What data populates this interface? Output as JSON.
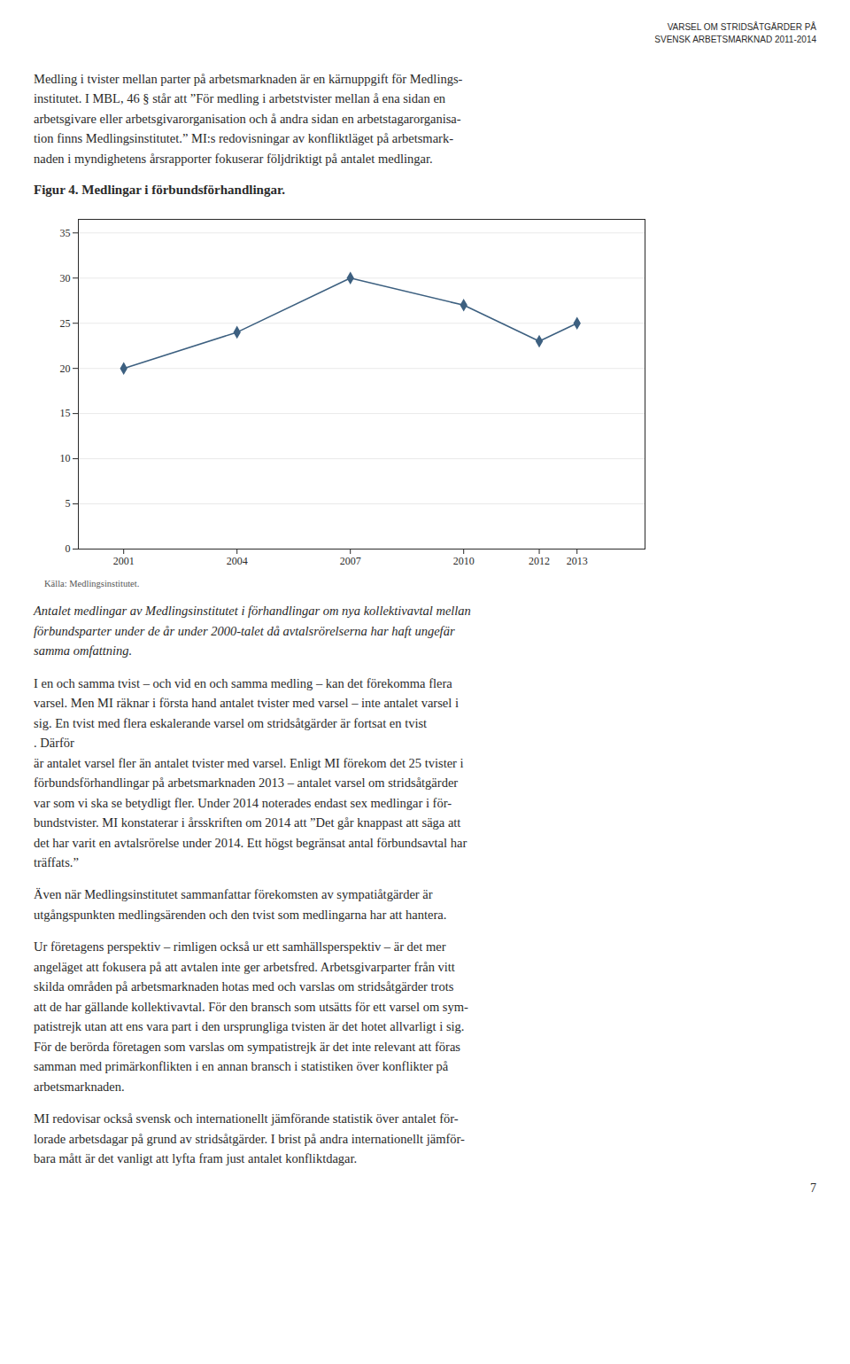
{
  "chart_data": {
    "type": "line",
    "title": "Figur 4. Medlingar i förbundsförhandlingar.",
    "x": [
      2001,
      2004,
      2007,
      2010,
      2012,
      2013
    ],
    "values": [
      20,
      24,
      30,
      27,
      23,
      25
    ],
    "color": "#3d6080",
    "marker": "diamond",
    "xlim": [
      1999.8,
      2014.8
    ],
    "xticks": [
      2001,
      2004,
      2007,
      2010,
      2012,
      2013
    ],
    "ylim": [
      0,
      36.5
    ],
    "yticks": [
      0,
      5,
      10,
      15,
      20,
      25,
      30,
      35
    ],
    "grid": true,
    "annotations": [
      "VARSEL OM STRIDSÅTGÄRDER PÅ",
      "SVENSK ARBETSMARKNAD 2011-2014",
      "Medling i tvister mellan parter på arbetsmarknaden är en kärnuppgift för Medlings-\ninstitutet. I MBL, 46 § står att ”För medling i arbetstvister mellan å ena sidan en\narbetsgivare eller arbetsgivarorganisation och å andra sidan en arbetstagarorganisa-\ntion finns Medlingsinstitutet.” MI:s redovisningar av konfliktläget på arbetsmark-\nnaden i myndighetens årsrapporter fokuserar följdriktigt på antalet medlingar.",
      "Antalet medlingar av Medlingsinstitutet i förhandlingar om nya kollektivavtal mellan\nförbundsparter under de år under 2000-talet då avtalsrörelserna har haft ungefär\nsamma omfattning.",
      "I en och samma tvist – och vid en och samma medling – kan det förekomma flera\nvarsel. Men MI räknar i första hand antalet tvister med varsel – inte antalet varsel i\nsig. En tvist med flera eskalerande varsel om stridsåtgärder är fortsat en tvist\n. Därför\när antalet varsel fler än antalet tvister med varsel. Enligt MI förekom det 25 tvister i\nförbundsförhandlingar på arbetsmarknaden 2013 – antalet varsel om stridsåtgärder\nvar som vi ska se betydligt fler. Under 2014 noterades endast sex medlingar i för-\nbundstvister. MI konstaterar i årsskriften om 2014 att ”Det går knappast att säga att\ndet har varit en avtalsrörelse under 2014. Ett högst begränsat antal förbundsavtal har\nträffats.”",
      "Även när Medlingsinstitutet sammanfattar förekomsten av sympatiåtgärder är\nutgångspunkten medlingsärenden och den tvist som medlingarna har att hantera.",
      "Ur företagens perspektiv – rimligen också ur ett samhällsperspektiv – är det mer\nangeläget att fokusera på att avtalen inte ger arbetsfred. Arbetsgivarparter från vitt\nskilda områden på arbetsmarknaden hotas med och varslas om stridsåtgärder trots\natt de har gällande kollektivavtal. För den bransch som utsätts för ett varsel om sym-\npatistrejk utan att ens vara part i den ursprungliga tvisten är det hotet allvarligt i sig.\nFör de berörda företagen som varslas om sympatistrejk är det inte relevant att föras\nsamman med primärkonflikten i en annan bransch i statistiken över konflikter på\narbetsmarknaden.",
      "MI redovisar också svensk och internationellt jämförande statistik över antalet för-\nlorade arbetsdagar på grund av stridsåtgärder. I brist på andra internationellt jämför-\nbara mått är det vanligt att lyfta fram just antalet konfliktdagar.",
      "Källa: Medlingsinstitutet.",
      "7"
    ]
  }
}
